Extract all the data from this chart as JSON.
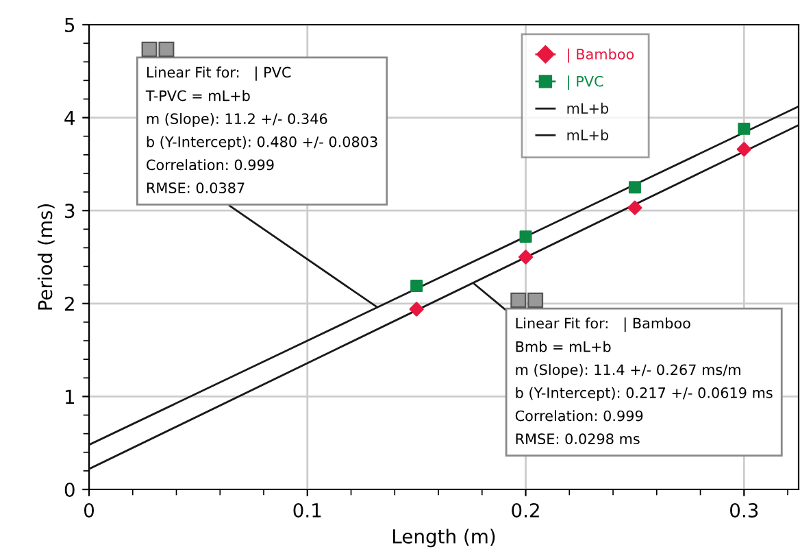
{
  "chart_data": {
    "type": "scatter",
    "xlabel": "Length (m)",
    "ylabel": "Period (ms)",
    "xlim": [
      0,
      0.325
    ],
    "ylim": [
      0,
      5
    ],
    "xticks": [
      0,
      {
        "value": 0.02,
        "label": null
      },
      {
        "value": 0.04,
        "label": null
      },
      {
        "value": 0.06,
        "label": null
      },
      {
        "value": 0.08,
        "label": null
      },
      0.1,
      {
        "value": 0.12,
        "label": null
      },
      {
        "value": 0.14,
        "label": null
      },
      {
        "value": 0.16,
        "label": null
      },
      {
        "value": 0.18,
        "label": null
      },
      0.2,
      {
        "value": 0.22,
        "label": null
      },
      {
        "value": 0.24,
        "label": null
      },
      {
        "value": 0.26,
        "label": null
      },
      {
        "value": 0.28,
        "label": null
      },
      0.3,
      {
        "value": 0.32,
        "label": null
      }
    ],
    "yticks": [
      0,
      {
        "value": 0.2,
        "label": null
      },
      {
        "value": 0.4,
        "label": null
      },
      {
        "value": 0.6,
        "label": null
      },
      {
        "value": 0.8,
        "label": null
      },
      1,
      {
        "value": 1.2,
        "label": null
      },
      {
        "value": 1.4,
        "label": null
      },
      {
        "value": 1.6,
        "label": null
      },
      {
        "value": 1.8,
        "label": null
      },
      2,
      {
        "value": 2.2,
        "label": null
      },
      {
        "value": 2.4,
        "label": null
      },
      {
        "value": 2.6,
        "label": null
      },
      {
        "value": 2.8,
        "label": null
      },
      3,
      {
        "value": 3.2,
        "label": null
      },
      {
        "value": 3.4,
        "label": null
      },
      {
        "value": 3.6,
        "label": null
      },
      {
        "value": 3.8,
        "label": null
      },
      4,
      {
        "value": 4.2,
        "label": null
      },
      {
        "value": 4.4,
        "label": null
      },
      {
        "value": 4.6,
        "label": null
      },
      {
        "value": 4.8,
        "label": null
      },
      5
    ],
    "grid": true,
    "legend": "top",
    "series": [
      {
        "name": "| Bamboo",
        "marker": "diamond",
        "color": "#e8173f",
        "x": [
          0.15,
          0.2,
          0.25,
          0.3
        ],
        "values": [
          1.94,
          2.5,
          3.03,
          3.66
        ]
      },
      {
        "name": "| PVC",
        "marker": "square",
        "color": "#0a8a45",
        "x": [
          0.15,
          0.2,
          0.25,
          0.3
        ],
        "values": [
          2.19,
          2.72,
          3.25,
          3.88
        ]
      },
      {
        "name": "mL+b",
        "type": "line",
        "marker": "none",
        "color": "#1a1a1a",
        "x": [
          0,
          0.325
        ],
        "values": [
          0.22,
          3.92
        ]
      },
      {
        "name": "mL+b",
        "type": "line",
        "marker": "none",
        "color": "#1a1a1a",
        "x": [
          0,
          0.325
        ],
        "values": [
          0.48,
          4.12
        ]
      }
    ],
    "annotations": [
      {
        "text": "Linear Fit for:   | PVC\nT-PVC = mL+b\nm (Slope): 11.2 +/- 0.346\nb (Y-Intercept): 0.480 +/- 0.0803\nCorrelation: 0.999\nRMSE: 0.0387",
        "x": 0.132,
        "y": 1.96
      },
      {
        "text": "Linear Fit for:   | Bamboo\nBmb = mL+b\nm (Slope): 11.4 +/- 0.267 ms/m\nb (Y-Intercept): 0.217 +/- 0.0619 ms\nCorrelation: 0.999\nRMSE: 0.0298 ms",
        "x": 0.176,
        "y": 2.22
      }
    ]
  }
}
